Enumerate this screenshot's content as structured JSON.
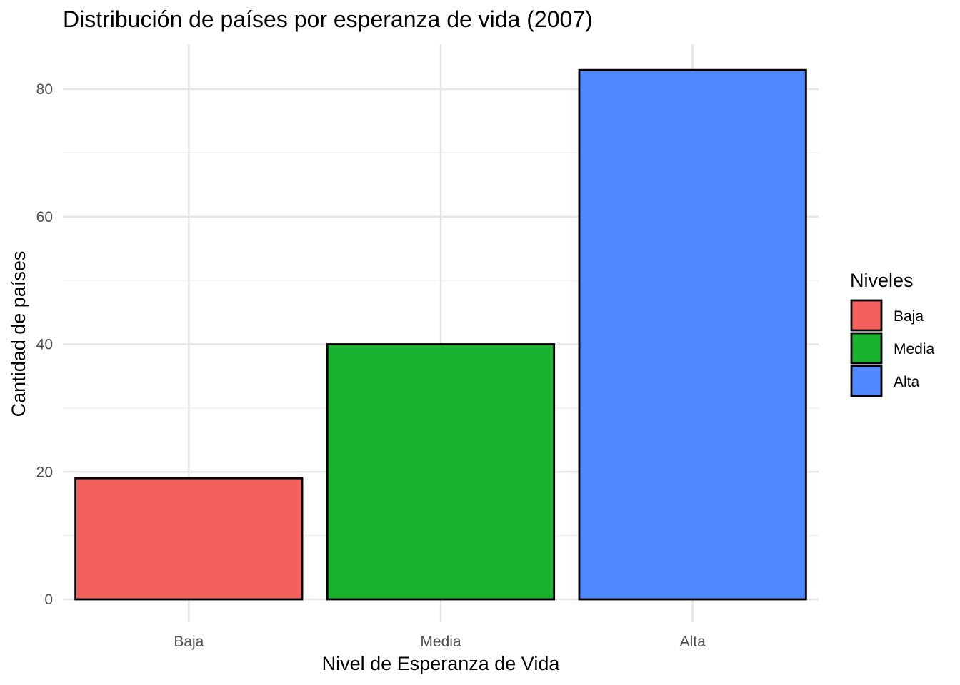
{
  "chart_data": {
    "type": "bar",
    "title": "Distribución de países por esperanza de vida (2007)",
    "xlabel": "Nivel de Esperanza de Vida",
    "ylabel": "Cantidad de países",
    "categories": [
      "Baja",
      "Media",
      "Alta"
    ],
    "values": [
      19,
      40,
      83
    ],
    "colors": [
      "#F4615D",
      "#19B22F",
      "#5088FF"
    ],
    "ylim": [
      0,
      88
    ],
    "yticks": [
      0,
      20,
      40,
      60,
      80
    ],
    "grid": true,
    "legend": {
      "title": "Niveles",
      "placement": "right",
      "entries": [
        "Baja",
        "Media",
        "Alta"
      ]
    }
  }
}
